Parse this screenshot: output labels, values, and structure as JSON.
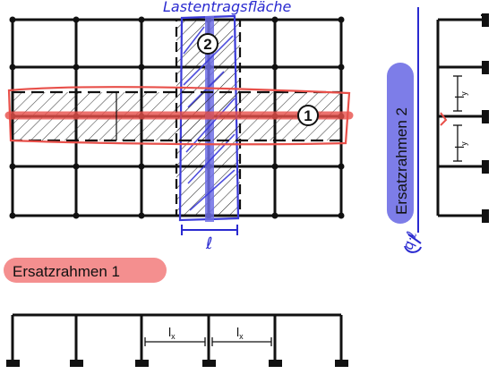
{
  "annotations": {
    "top_handwritten": "Lastentragsfläche",
    "width_symbol": "ℓ",
    "side_handwritten": "q·ℓ"
  },
  "labels": {
    "frame_1": "Ersatzrahmen 1",
    "frame_2": "Ersatzrahmen 2",
    "strip_1_marker": "1",
    "strip_2_marker": "2",
    "span_x_main": "l",
    "span_x_sub": "x",
    "span_y_main": "l",
    "span_y_sub": "y"
  },
  "colors": {
    "structure": "#111111",
    "red_highlight": "#e8504a",
    "blue_highlight": "#3b3bd8",
    "blue_fill": "#6f6fe6",
    "pink_highlight": "#f27b7b",
    "ink_blue": "#2a2ad0"
  }
}
